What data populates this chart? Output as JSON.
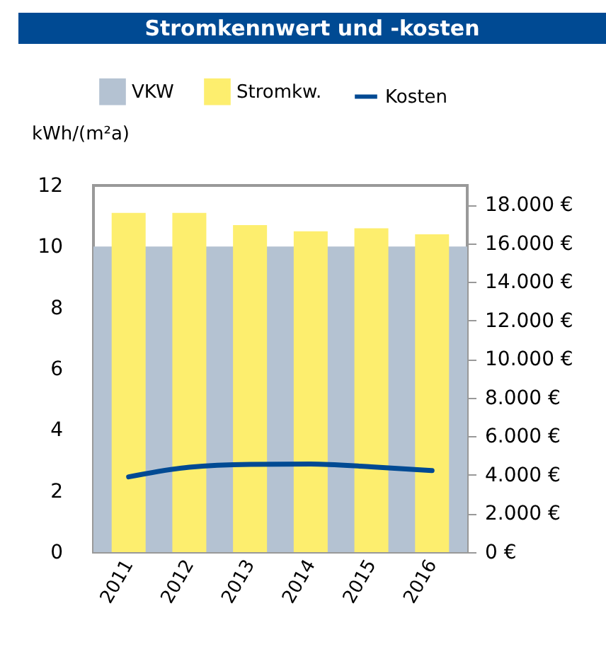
{
  "chart_data": {
    "type": "bar",
    "title": "Stromkennwert und -kosten",
    "ylabel": "kWh/(m²a)",
    "categories": [
      "2011",
      "2012",
      "2013",
      "2014",
      "2015",
      "2016"
    ],
    "series": [
      {
        "name": "Stromkw.",
        "color": "#fdee6e",
        "values": [
          11.1,
          11.1,
          10.7,
          10.5,
          10.6,
          10.4
        ]
      },
      {
        "name": "Kosten",
        "type": "line",
        "axis": "y2",
        "color": "#004a93",
        "values": [
          3900,
          4400,
          4550,
          4570,
          4420,
          4230
        ]
      }
    ],
    "bands": [
      {
        "axis": "y",
        "from": 0,
        "to": 10,
        "label": "VKW",
        "color": "#b4c2d2"
      }
    ],
    "ylim": [
      0,
      12
    ],
    "yticks": [
      0,
      2,
      4,
      6,
      8,
      10,
      12
    ],
    "y2lim": [
      0,
      19000
    ],
    "y2ticks": [
      {
        "value": 0,
        "label": "0 €"
      },
      {
        "value": 2000,
        "label": "2.000 €"
      },
      {
        "value": 4000,
        "label": "4.000 €"
      },
      {
        "value": 6000,
        "label": "6.000 €"
      },
      {
        "value": 8000,
        "label": "8.000 €"
      },
      {
        "value": 10000,
        "label": "10.000 €"
      },
      {
        "value": 12000,
        "label": "12.000 €"
      },
      {
        "value": 14000,
        "label": "14.000 €"
      },
      {
        "value": 16000,
        "label": "16.000 €"
      },
      {
        "value": 18000,
        "label": "18.000 €"
      }
    ],
    "legend": "top"
  }
}
